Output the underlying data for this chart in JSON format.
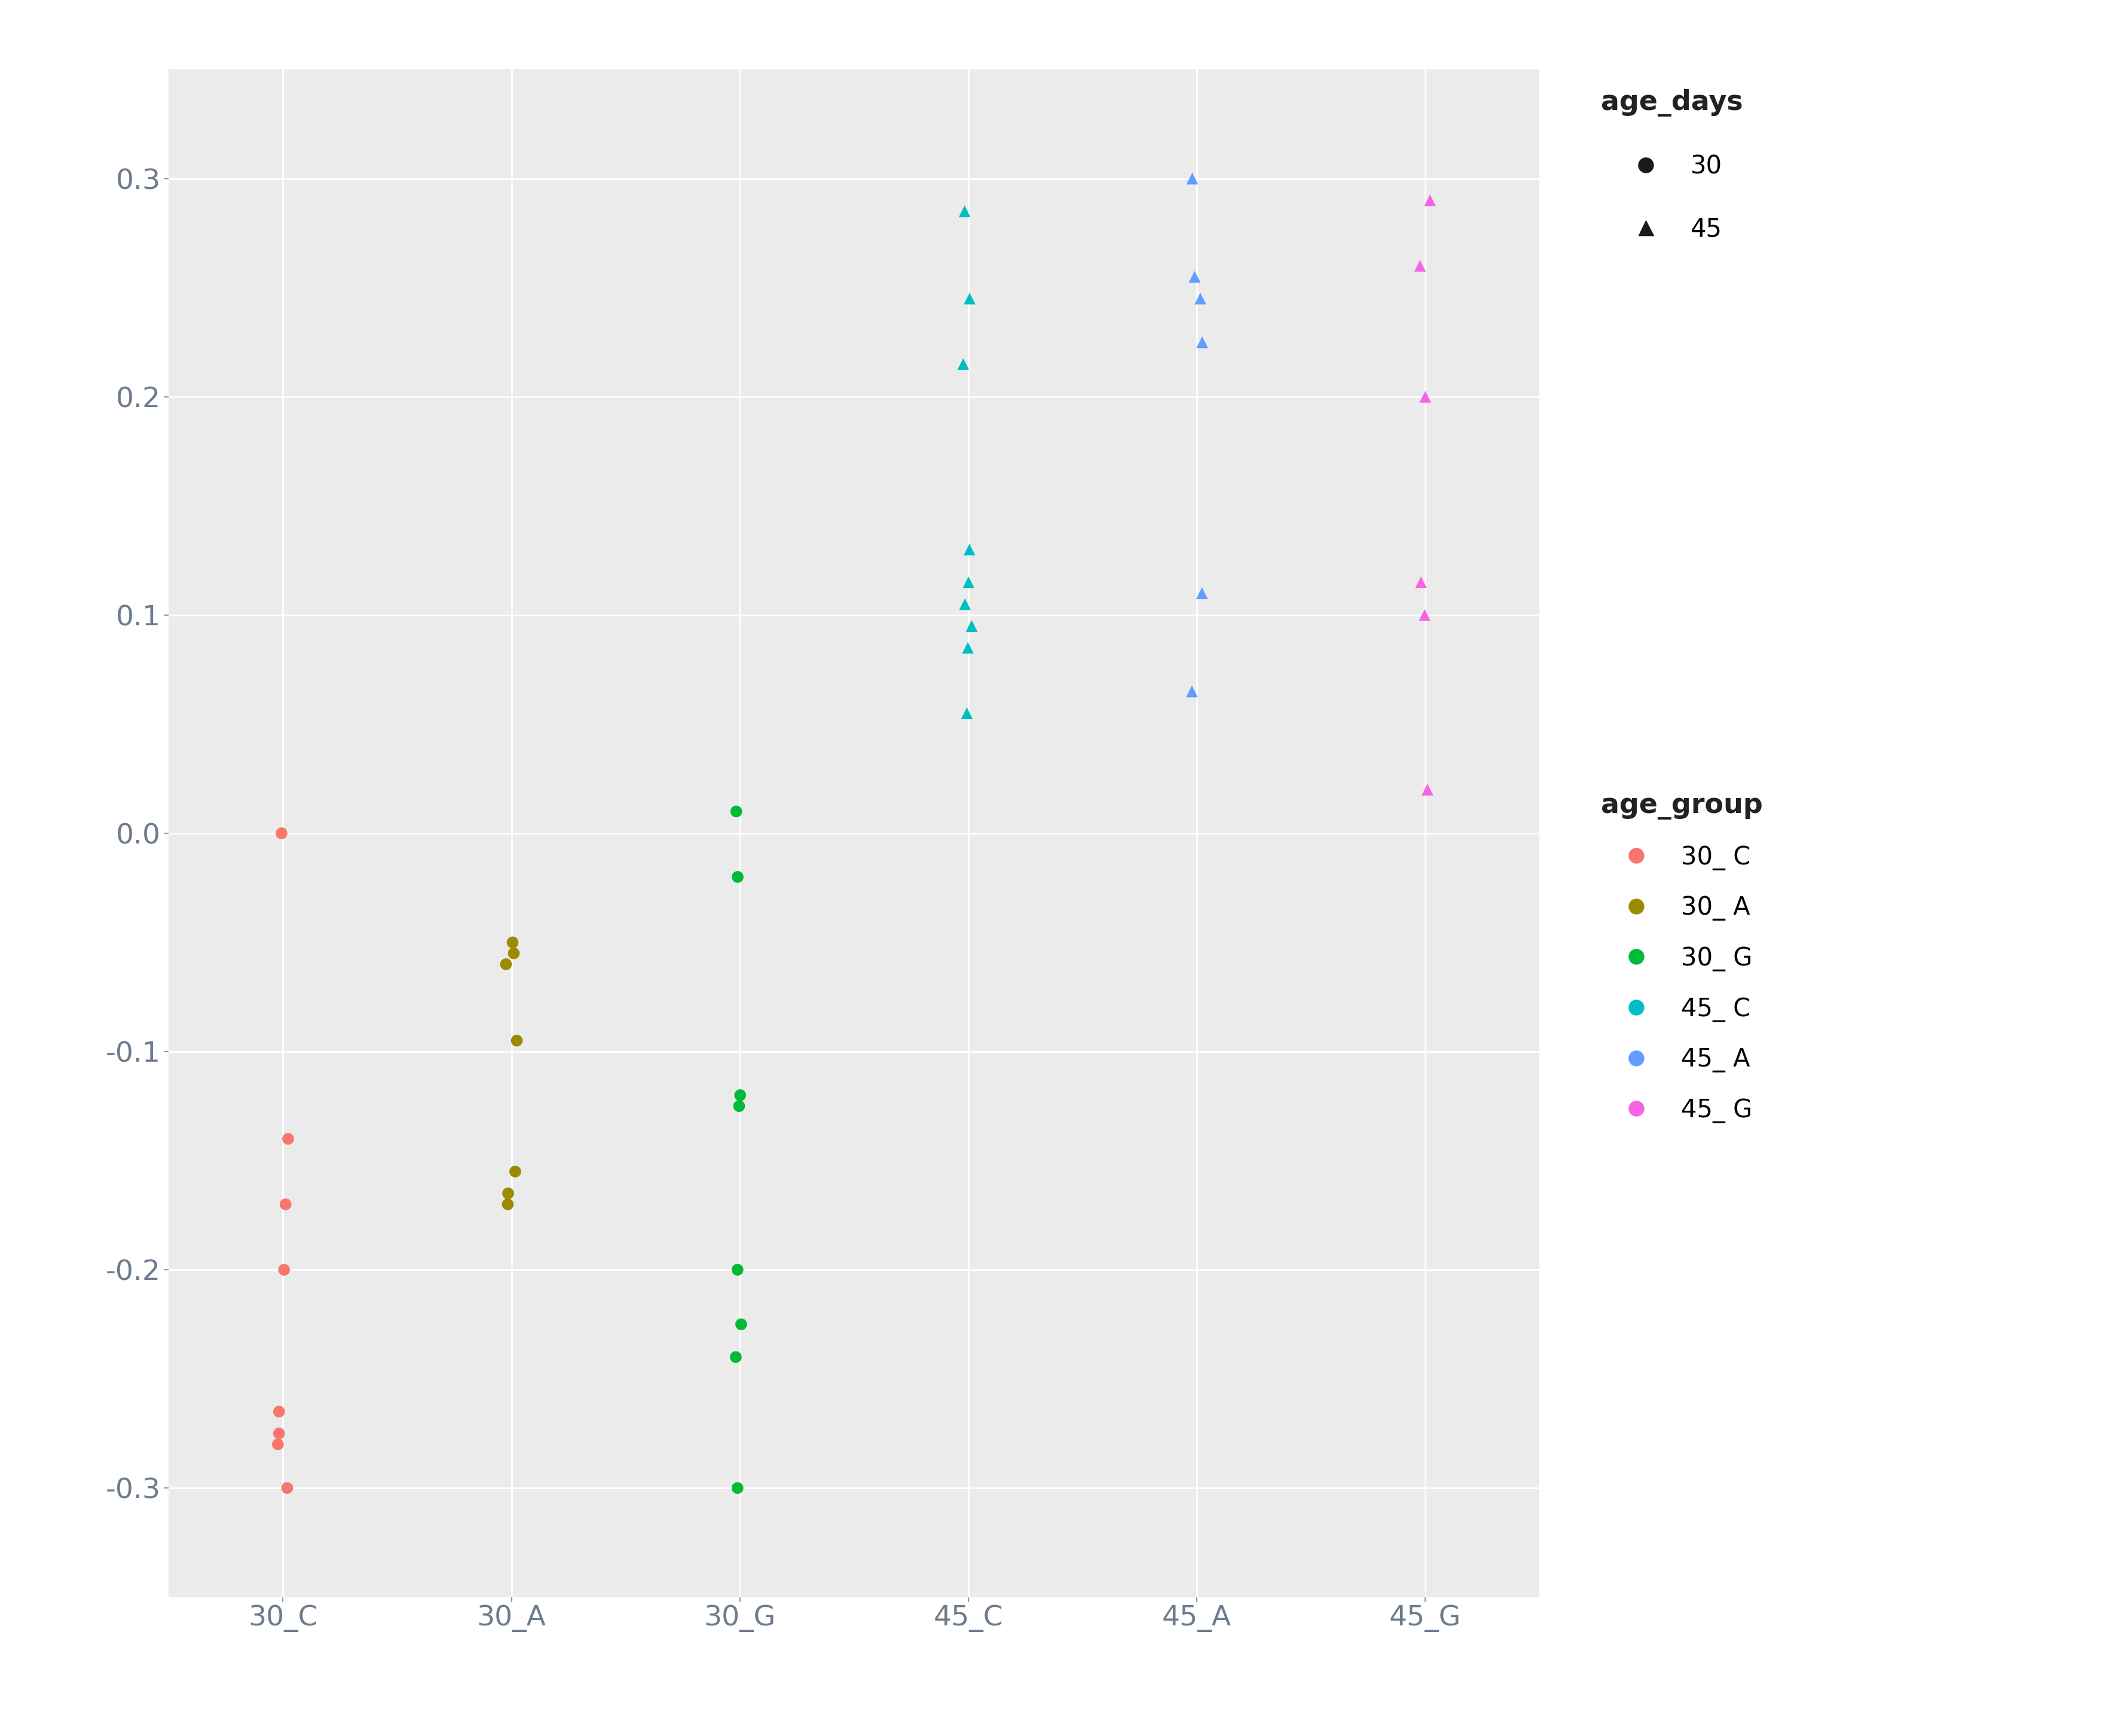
{
  "groups": [
    "30_C",
    "30_A",
    "30_G",
    "45_C",
    "45_A",
    "45_G"
  ],
  "group_x": [
    1,
    2,
    3,
    4,
    5,
    6
  ],
  "background_color": "#EBEBEB",
  "grid_color": "#FFFFFF",
  "data": {
    "30_C": {
      "color": "#F8766D",
      "age": 30,
      "marker": "o",
      "points": [
        0.0,
        -0.14,
        -0.17,
        -0.2,
        -0.265,
        -0.275,
        -0.28,
        -0.3
      ]
    },
    "30_A": {
      "color": "#9B8B00",
      "age": 30,
      "marker": "o",
      "points": [
        -0.05,
        -0.055,
        -0.06,
        -0.095,
        -0.155,
        -0.165,
        -0.17
      ]
    },
    "30_G": {
      "color": "#00BA38",
      "age": 30,
      "marker": "o",
      "points": [
        0.01,
        -0.02,
        -0.12,
        -0.125,
        -0.2,
        -0.225,
        -0.24,
        -0.3
      ]
    },
    "45_C": {
      "color": "#00BFC4",
      "age": 45,
      "marker": "^",
      "points": [
        0.055,
        0.085,
        0.095,
        0.105,
        0.115,
        0.13,
        0.215,
        0.245,
        0.285
      ]
    },
    "45_A": {
      "color": "#619CFF",
      "age": 45,
      "marker": "^",
      "points": [
        0.065,
        0.11,
        0.225,
        0.245,
        0.255,
        0.3
      ]
    },
    "45_G": {
      "color": "#F564E3",
      "age": 45,
      "marker": "^",
      "points": [
        0.02,
        0.1,
        0.115,
        0.2,
        0.26,
        0.29
      ]
    }
  },
  "ylim": [
    -0.35,
    0.35
  ],
  "yticks": [
    -0.3,
    -0.2,
    -0.1,
    0.0,
    0.1,
    0.2,
    0.3
  ],
  "legend_age_days_title": "age_days",
  "legend_age_group_title": "age_group",
  "legend_age_days": [
    {
      "label": "30",
      "marker": "o",
      "color": "#333333"
    },
    {
      "label": "45",
      "marker": "^",
      "color": "#333333"
    }
  ],
  "legend_age_group": [
    {
      "label": "30_ C",
      "color": "#F8766D"
    },
    {
      "label": "30_ A",
      "color": "#9B8B00"
    },
    {
      "label": "30_ G",
      "color": "#00BA38"
    },
    {
      "label": "45_ C",
      "color": "#00BFC4"
    },
    {
      "label": "45_ A",
      "color": "#619CFF"
    },
    {
      "label": "45_ G",
      "color": "#F564E3"
    }
  ],
  "tick_color": "#6D7B8D",
  "title_fontsize": 34,
  "label_fontsize": 34,
  "legend_fontsize": 30,
  "legend_title_fontsize": 33
}
